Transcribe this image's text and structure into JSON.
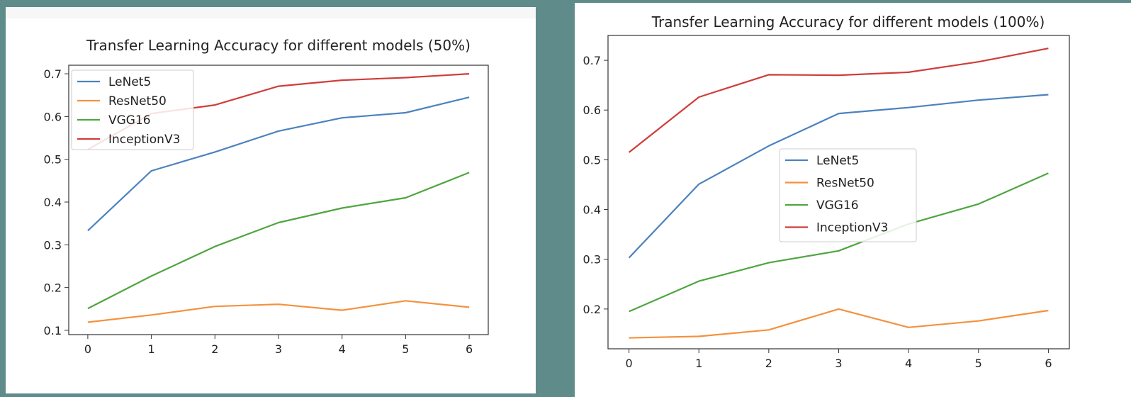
{
  "chart_data": [
    {
      "type": "line",
      "title": "Transfer Learning Accuracy for different models (50%)",
      "xlabel": "",
      "ylabel": "",
      "x": [
        0,
        1,
        2,
        3,
        4,
        5,
        6
      ],
      "x_ticks": [
        "0",
        "1",
        "2",
        "3",
        "4",
        "5",
        "6"
      ],
      "y_ticks": [
        "0.1",
        "0.2",
        "0.3",
        "0.4",
        "0.5",
        "0.6",
        "0.7"
      ],
      "y_tick_values": [
        0.1,
        0.2,
        0.3,
        0.4,
        0.5,
        0.6,
        0.7
      ],
      "xlim": [
        -0.3,
        6.3
      ],
      "ylim": [
        0.09,
        0.72
      ],
      "legend_position": "top-left",
      "grid": false,
      "series": [
        {
          "name": "LeNet5",
          "color": "#4c82be",
          "values": [
            0.333,
            0.473,
            0.517,
            0.566,
            0.597,
            0.609,
            0.645
          ]
        },
        {
          "name": "ResNet50",
          "color": "#f5913e",
          "values": [
            0.119,
            0.136,
            0.156,
            0.161,
            0.147,
            0.169,
            0.154
          ]
        },
        {
          "name": "VGG16",
          "color": "#4fa53f",
          "values": [
            0.151,
            0.227,
            0.296,
            0.352,
            0.386,
            0.41,
            0.469
          ]
        },
        {
          "name": "InceptionV3",
          "color": "#cf3e3a",
          "values": [
            0.523,
            0.607,
            0.627,
            0.671,
            0.685,
            0.691,
            0.7
          ]
        }
      ]
    },
    {
      "type": "line",
      "title": "Transfer Learning Accuracy for different models (100%)",
      "xlabel": "",
      "ylabel": "",
      "x": [
        0,
        1,
        2,
        3,
        4,
        5,
        6
      ],
      "x_ticks": [
        "0",
        "1",
        "2",
        "3",
        "4",
        "5",
        "6"
      ],
      "y_ticks": [
        "0.2",
        "0.3",
        "0.4",
        "0.5",
        "0.6",
        "0.7"
      ],
      "y_tick_values": [
        0.2,
        0.3,
        0.4,
        0.5,
        0.6,
        0.7
      ],
      "xlim": [
        -0.3,
        6.3
      ],
      "ylim": [
        0.12,
        0.75
      ],
      "legend_position": "center",
      "grid": false,
      "series": [
        {
          "name": "LeNet5",
          "color": "#4c82be",
          "values": [
            0.303,
            0.451,
            0.528,
            0.593,
            0.605,
            0.62,
            0.631
          ]
        },
        {
          "name": "ResNet50",
          "color": "#f5913e",
          "values": [
            0.142,
            0.145,
            0.158,
            0.2,
            0.163,
            0.176,
            0.197
          ]
        },
        {
          "name": "VGG16",
          "color": "#4fa53f",
          "values": [
            0.195,
            0.256,
            0.293,
            0.317,
            0.371,
            0.411,
            0.473
          ]
        },
        {
          "name": "InceptionV3",
          "color": "#cf3e3a",
          "values": [
            0.515,
            0.626,
            0.671,
            0.67,
            0.676,
            0.697,
            0.724
          ]
        }
      ]
    }
  ]
}
